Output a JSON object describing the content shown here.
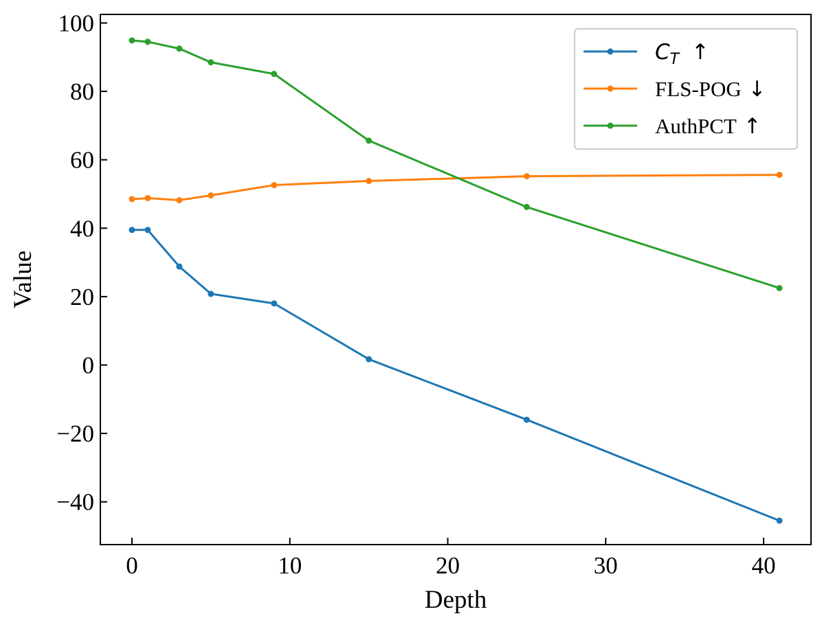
{
  "chart_data": {
    "type": "line",
    "xlabel": "Depth",
    "ylabel": "Value",
    "xlim": [
      -2,
      43
    ],
    "ylim": [
      -52.5,
      102.5
    ],
    "xticks": [
      0,
      10,
      20,
      30,
      40
    ],
    "xtick_labels": [
      "0",
      "10",
      "20",
      "30",
      "40"
    ],
    "yticks": [
      -40,
      -20,
      0,
      20,
      40,
      60,
      80,
      100
    ],
    "ytick_labels": [
      "−40",
      "−20",
      "0",
      "20",
      "40",
      "60",
      "80",
      "100"
    ],
    "grid": false,
    "legend_position": "top-right",
    "x": [
      0,
      1,
      3,
      5,
      9,
      15,
      25,
      41
    ],
    "series": [
      {
        "name": "C",
        "name_sub": "T",
        "arrow": "↑",
        "color": "#1f77b4",
        "values": [
          39.5,
          39.5,
          28.8,
          20.8,
          18.0,
          1.7,
          -16.0,
          -45.5
        ]
      },
      {
        "name": "FLS-POG",
        "arrow": "↓",
        "color": "#ff7f0e",
        "values": [
          48.5,
          48.8,
          48.2,
          49.6,
          52.6,
          53.8,
          55.2,
          55.6
        ]
      },
      {
        "name": "AuthPCT",
        "arrow": "↑",
        "color": "#2ca02c",
        "values": [
          94.9,
          94.5,
          92.5,
          88.5,
          85.1,
          65.6,
          46.2,
          22.5
        ]
      }
    ]
  }
}
